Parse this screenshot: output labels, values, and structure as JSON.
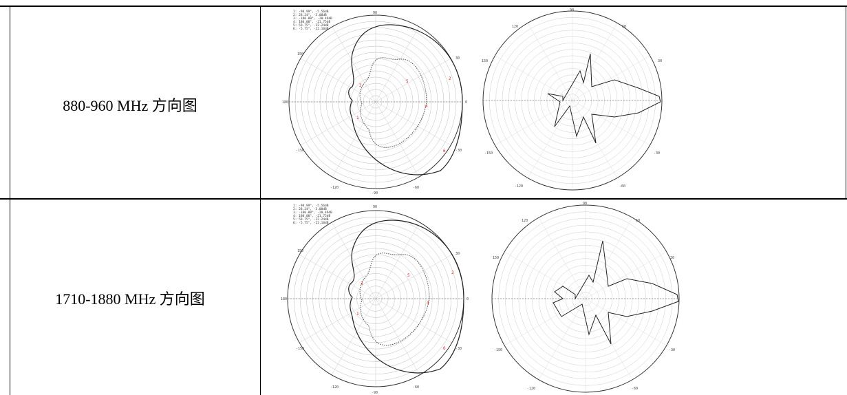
{
  "rows": [
    {
      "label": "880-960 MHz 方向图",
      "left_markers": [
        "1: -98.99°, -5.56dB",
        "2: 28.24°, -3.00dB",
        "3: -180.00°, -28.49dB",
        "4: 180.00°, -21.75dB",
        "5: 59.75°, -22.24dB",
        "6: -5.75°, -22.10dB"
      ],
      "left_angles": {
        "top": "90",
        "left": "180",
        "right": "0",
        "ul": "150",
        "ur": "30",
        "ll": "-150",
        "lr": "-30",
        "bl": "-120",
        "br": "-60",
        "bottom": "-90"
      },
      "right_angles": {
        "top": "90",
        "ul": "120",
        "ur": "60",
        "l": "150",
        "r": "30",
        "ll": "-150",
        "lr": "-30",
        "bl": "-120",
        "br": "-60"
      }
    },
    {
      "label": "1710-1880 MHz 方向图",
      "left_markers": [
        "1: -98.99°, -5.56dB",
        "2: 28.24°, -3.00dB",
        "3: -180.00°, -28.49dB",
        "4: 180.00°, -21.75dB",
        "5: 59.75°, -22.24dB",
        "6: -5.75°, -22.10dB"
      ],
      "left_angles": {
        "top": "90",
        "left": "180",
        "right": "0",
        "ul": "150",
        "ur": "30",
        "ll": "-150",
        "lr": "-30",
        "bl": "-120",
        "br": "-60",
        "bottom": "-90"
      },
      "right_angles": {
        "top": "90",
        "ul": "120",
        "ur": "60",
        "l": "150",
        "r": "30",
        "ll": "-150",
        "lr": "-30",
        "bl": "-120",
        "br": "-60"
      }
    }
  ]
}
